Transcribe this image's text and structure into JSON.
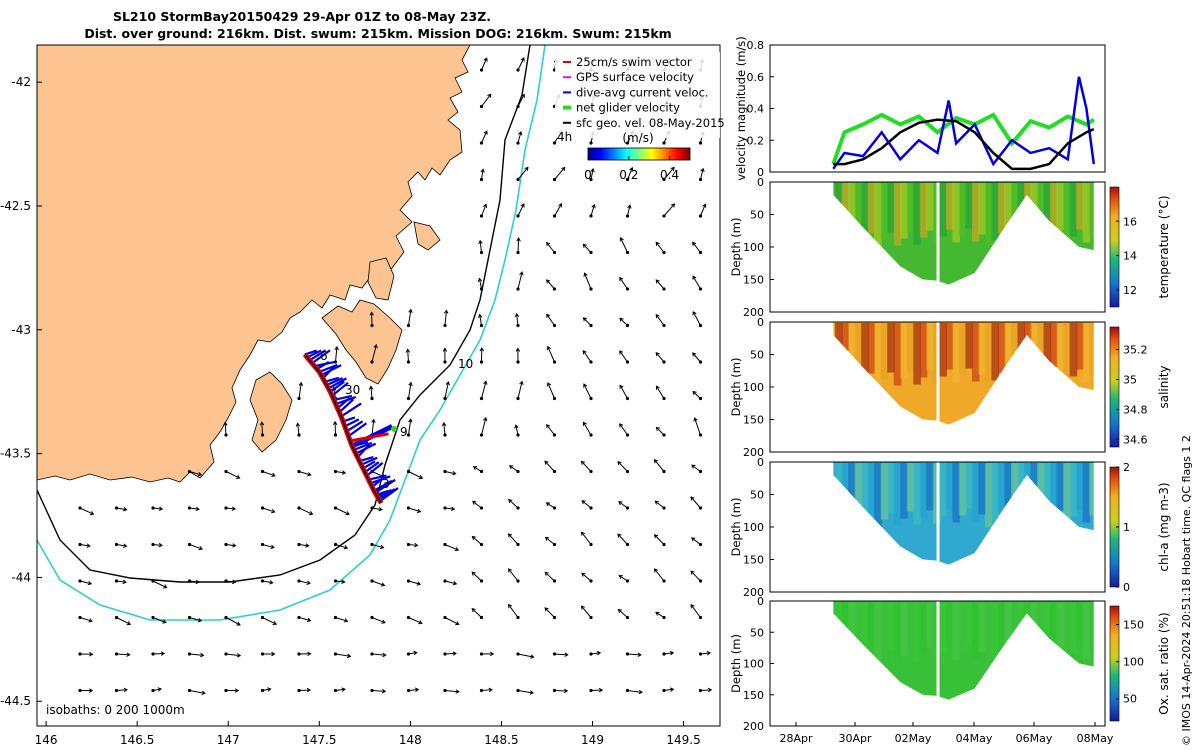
{
  "title": {
    "line1": "SL210 StormBay20150429 29-Apr 01Z to 08-May 23Z.",
    "line2": "Dist. over ground: 216km. Dist. swum: 215km. Mission DOG: 216km. Swum: 215km"
  },
  "map": {
    "x_ticks": [
      "146",
      "146.5",
      "147",
      "147.5",
      "148",
      "148.5",
      "149",
      "149.5"
    ],
    "y_ticks": [
      "-42",
      "-42.5",
      "-43",
      "-43.5",
      "-44",
      "-44.5"
    ],
    "xlim": [
      145.95,
      149.7
    ],
    "ylim": [
      -44.6,
      -41.85
    ],
    "legend": [
      {
        "label": "25cm/s swim vector",
        "color": "#e00000"
      },
      {
        "label": "GPS surface velocity",
        "color": "#d020d0"
      },
      {
        "label": "dive-avg current veloc.",
        "color": "#0000e0"
      },
      {
        "label": "net glider velocity",
        "color": "#22dd22"
      },
      {
        "label": "sfc geo. vel. 08-May-2015",
        "color": "#000000"
      }
    ],
    "legend_side_label": "4h",
    "colorbar": {
      "label": "(m/s)",
      "ticks": [
        "0",
        "0.2",
        "0.4"
      ],
      "range": [
        0,
        0.5
      ]
    },
    "isobaths_label": "isobaths: 0   200  1000m",
    "annotations": [
      "6",
      "30",
      "9",
      "3",
      "10"
    ],
    "track": [
      {
        "lon": 147.42,
        "lat": -43.1
      },
      {
        "lon": 147.5,
        "lat": -43.17
      },
      {
        "lon": 147.56,
        "lat": -43.25
      },
      {
        "lon": 147.62,
        "lat": -43.35
      },
      {
        "lon": 147.68,
        "lat": -43.47
      },
      {
        "lon": 147.74,
        "lat": -43.56
      },
      {
        "lon": 147.8,
        "lat": -43.65
      },
      {
        "lon": 147.84,
        "lat": -43.7
      }
    ]
  },
  "chart_data": [
    {
      "type": "line",
      "title": "",
      "ylabel": "velocity magnitude (m/s)",
      "ylim": [
        0,
        0.8
      ],
      "y_ticks": [
        "0",
        "0.2",
        "0.4",
        "0.6",
        "0.8"
      ],
      "x_day_start": 27.5,
      "x_day_end": 36.5,
      "series": [
        {
          "name": "net glider velocity",
          "color": "#22dd22",
          "t": [
            29.2,
            29.5,
            30.0,
            30.5,
            31.0,
            31.5,
            32.0,
            32.5,
            33.0,
            33.5,
            34.0,
            34.5,
            35.0,
            35.5,
            36.0,
            36.2
          ],
          "values": [
            0.05,
            0.25,
            0.3,
            0.36,
            0.3,
            0.35,
            0.25,
            0.34,
            0.3,
            0.36,
            0.18,
            0.32,
            0.28,
            0.35,
            0.3,
            0.33
          ]
        },
        {
          "name": "dive-avg current veloc.",
          "color": "#0000e0",
          "t": [
            29.2,
            29.5,
            30.0,
            30.5,
            31.0,
            31.5,
            32.0,
            32.3,
            32.5,
            33.0,
            33.5,
            34.0,
            34.5,
            35.0,
            35.5,
            35.8,
            36.0,
            36.2
          ],
          "values": [
            0.02,
            0.12,
            0.1,
            0.25,
            0.08,
            0.2,
            0.12,
            0.45,
            0.18,
            0.3,
            0.05,
            0.2,
            0.12,
            0.15,
            0.08,
            0.6,
            0.4,
            0.05
          ]
        },
        {
          "name": "sfc geo. vel.",
          "color": "#000000",
          "t": [
            29.2,
            29.5,
            30.0,
            30.5,
            31.0,
            31.5,
            32.0,
            32.5,
            33.0,
            33.5,
            34.0,
            34.5,
            35.0,
            35.5,
            36.0,
            36.2
          ],
          "values": [
            0.05,
            0.05,
            0.08,
            0.15,
            0.25,
            0.31,
            0.33,
            0.32,
            0.25,
            0.12,
            0.02,
            0.02,
            0.05,
            0.18,
            0.25,
            0.27
          ]
        }
      ]
    },
    {
      "type": "heatmap",
      "ylabel": "Depth (m)",
      "colorbar_label": "temperature (°C)",
      "colorbar_ticks": [
        "12",
        "14",
        "16"
      ],
      "range": [
        11,
        18
      ],
      "ylim": [
        200,
        0
      ],
      "y_ticks": [
        "0",
        "50",
        "100",
        "150",
        "200"
      ]
    },
    {
      "type": "heatmap",
      "ylabel": "Depth (m)",
      "colorbar_label": "salinity",
      "colorbar_ticks": [
        "34.6",
        "34.8",
        "35",
        "35.2"
      ],
      "range": [
        34.55,
        35.35
      ],
      "ylim": [
        200,
        0
      ],
      "y_ticks": [
        "0",
        "50",
        "100",
        "150",
        "200"
      ]
    },
    {
      "type": "heatmap",
      "ylabel": "Depth (m)",
      "colorbar_label": "chl-a (mg m-3)",
      "colorbar_ticks": [
        "0",
        "1",
        "2"
      ],
      "range": [
        0,
        2
      ],
      "ylim": [
        200,
        0
      ],
      "y_ticks": [
        "0",
        "50",
        "100",
        "150",
        "200"
      ]
    },
    {
      "type": "heatmap",
      "ylabel": "Depth (m)",
      "colorbar_label": "Ox. sat. ratio (%)",
      "colorbar_ticks": [
        "50",
        "100",
        "150"
      ],
      "range": [
        20,
        175
      ],
      "ylim": [
        200,
        0
      ],
      "y_ticks": [
        "0",
        "50",
        "100",
        "150",
        "200"
      ],
      "x_ticks": [
        "28Apr",
        "30Apr",
        "02May",
        "04May",
        "06May",
        "08May"
      ]
    }
  ],
  "footer_note": "© IMOS 14-Apr-2024 20:51:18 Hobart time. QC flags 1  2",
  "colors": {
    "land": "#fdc391",
    "isobath_200": "#000000",
    "isobath_1000": "#2ad0d0",
    "axes": "#000000"
  }
}
